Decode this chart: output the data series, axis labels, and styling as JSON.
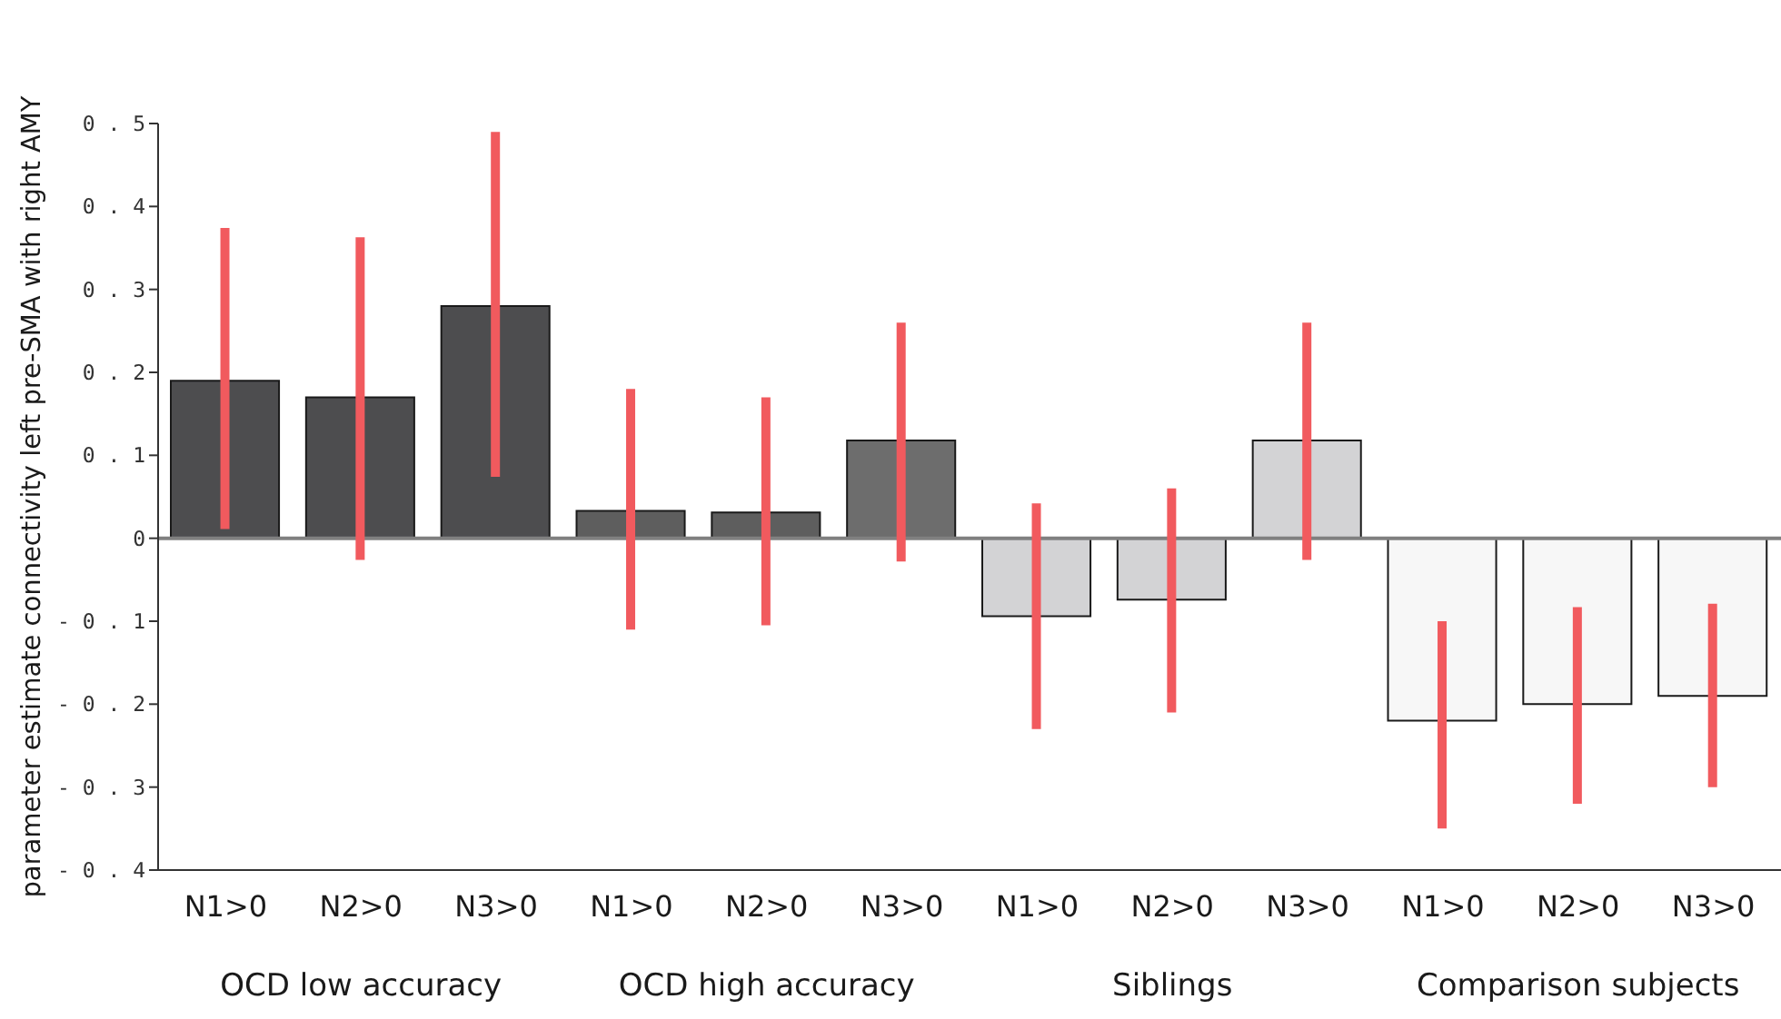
{
  "chart_data": {
    "type": "bar",
    "ylabel": "parameter estimate connectivity left pre-SMA with right AMY",
    "categories": [
      "N1>0",
      "N2>0",
      "N3>0",
      "N1>0",
      "N2>0",
      "N3>0",
      "N1>0",
      "N2>0",
      "N3>0",
      "N1>0",
      "N2>0",
      "N3>0"
    ],
    "values": [
      0.19,
      0.17,
      0.28,
      0.033,
      0.031,
      0.118,
      -0.094,
      -0.074,
      0.118,
      -0.22,
      -0.2,
      -0.19
    ],
    "colors": [
      "#4d4d4f",
      "#4d4d4f",
      "#4d4d4f",
      "#5e5e5e",
      "#5e5e5e",
      "#6d6d6d",
      "#d3d3d5",
      "#d3d3d5",
      "#d3d3d5",
      "#f7f7f7",
      "#f7f7f7",
      "#f7f7f7"
    ],
    "errors": [
      [
        0.011,
        0.374
      ],
      [
        -0.026,
        0.363
      ],
      [
        0.074,
        0.49
      ],
      [
        -0.11,
        0.18
      ],
      [
        -0.105,
        0.17
      ],
      [
        -0.028,
        0.26
      ],
      [
        -0.23,
        0.042
      ],
      [
        -0.21,
        0.06
      ],
      [
        -0.026,
        0.26
      ],
      [
        -0.35,
        -0.1
      ],
      [
        -0.32,
        -0.083
      ],
      [
        -0.3,
        -0.079
      ]
    ],
    "ylim": [
      -0.4,
      0.5
    ],
    "yticks": [
      -0.4,
      -0.3,
      -0.2,
      -0.1,
      0,
      0.1,
      0.2,
      0.3,
      0.4,
      0.5
    ],
    "ref_lines": [
      {
        "axis": "y",
        "value": 0,
        "color": "#808080"
      }
    ],
    "annotations": [
      "OCD low accuracy",
      "OCD high accuracy",
      "Siblings",
      "Comparison subjects"
    ],
    "grid": false,
    "legend": false
  }
}
